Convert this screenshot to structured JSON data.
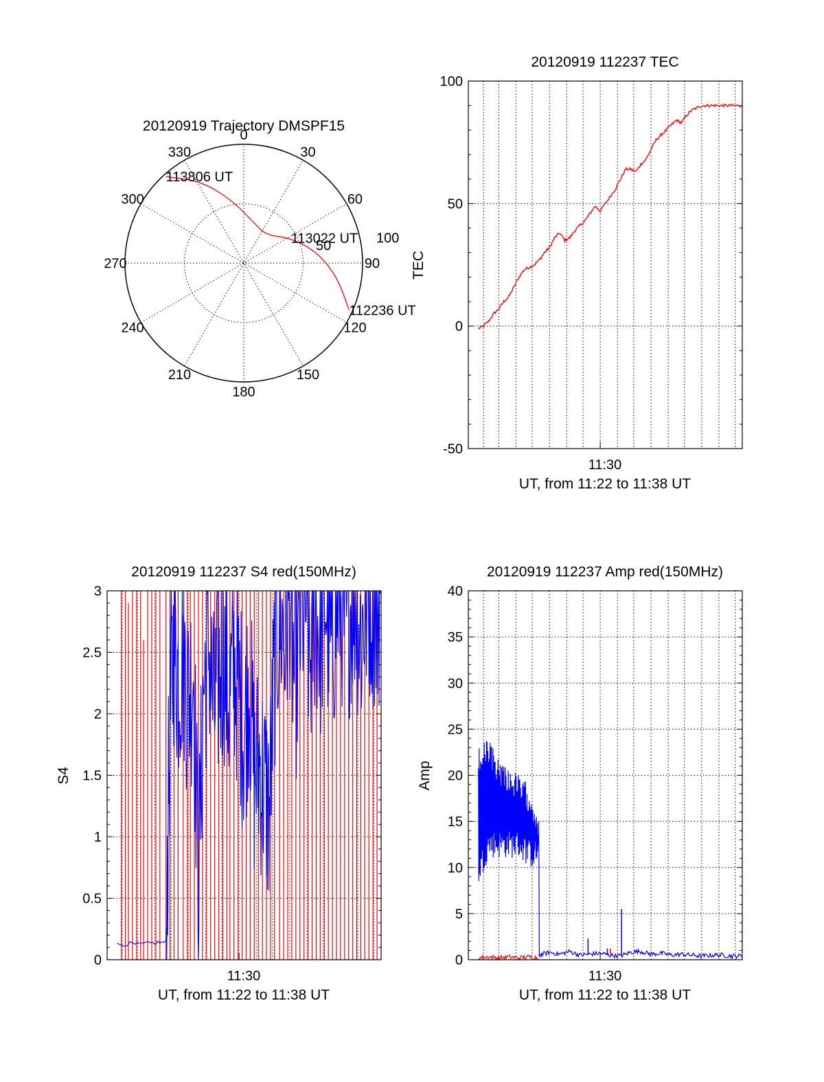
{
  "colors": {
    "red": "#ff0000",
    "blue": "#0000ff",
    "black": "#000000"
  },
  "chart_data": [
    {
      "id": "trajectory",
      "type": "polar",
      "title": "20120919 Trajectory DMSPF15",
      "azimuth_labels": [
        "0",
        "30",
        "60",
        "90",
        "120",
        "150",
        "180",
        "210",
        "240",
        "270",
        "300",
        "330"
      ],
      "radial_tick_labels": [
        "50",
        "100"
      ],
      "r_max": 100,
      "track": {
        "color": "red",
        "points": [
          {
            "az": 318,
            "r": 98
          },
          {
            "az": 333,
            "r": 77
          },
          {
            "az": 350,
            "r": 53
          },
          {
            "az": 12,
            "r": 36
          },
          {
            "az": 38,
            "r": 30
          },
          {
            "az": 62,
            "r": 45
          },
          {
            "az": 82,
            "r": 63
          },
          {
            "az": 99,
            "r": 80
          },
          {
            "az": 114,
            "r": 97
          }
        ]
      },
      "annotations": [
        {
          "text": "113806 UT",
          "az": 318,
          "r": 98
        },
        {
          "text": "113022 UT",
          "az": 62,
          "r": 45
        },
        {
          "text": "112236 UT",
          "az": 114,
          "r": 97
        }
      ]
    },
    {
      "id": "tec",
      "type": "line",
      "title": "20120919 112237 TEC",
      "xlabel": "UT, from 11:22 to 11:38 UT",
      "ylabel": "TEC",
      "x_tick_labels": [
        {
          "x": 11.5,
          "label": "11:30"
        }
      ],
      "xlim": [
        11.37,
        11.64
      ],
      "ylim": [
        -50,
        100
      ],
      "y_ticks": [
        -50,
        0,
        50,
        100
      ],
      "x_grid": [
        11.385,
        11.4,
        11.417,
        11.433,
        11.45,
        11.467,
        11.483,
        11.5,
        11.517,
        11.533,
        11.55,
        11.567,
        11.583,
        11.6,
        11.617,
        11.633
      ],
      "series": [
        {
          "color": "red",
          "x": [
            11.38,
            11.385,
            11.39,
            11.395,
            11.4,
            11.405,
            11.41,
            11.415,
            11.42,
            11.425,
            11.43,
            11.435,
            11.44,
            11.445,
            11.45,
            11.455,
            11.46,
            11.465,
            11.47,
            11.475,
            11.48,
            11.485,
            11.49,
            11.495,
            11.5,
            11.505,
            11.51,
            11.515,
            11.52,
            11.525,
            11.53,
            11.535,
            11.54,
            11.545,
            11.55,
            11.555,
            11.56,
            11.565,
            11.57,
            11.575,
            11.58,
            11.585,
            11.59,
            11.595,
            11.6,
            11.605,
            11.61,
            11.615,
            11.62,
            11.625,
            11.63,
            11.635,
            11.64
          ],
          "y": [
            -1,
            0,
            2,
            5,
            7,
            10,
            12,
            16,
            20,
            23,
            24,
            25,
            27,
            30,
            32,
            36,
            38,
            35,
            36,
            39,
            41,
            43,
            46,
            49,
            47,
            50,
            53,
            56,
            60,
            64,
            64,
            63,
            66,
            68,
            72,
            76,
            78,
            80,
            82,
            84,
            83,
            86,
            88,
            89,
            90,
            90,
            90,
            90,
            90,
            90,
            90,
            90,
            90
          ]
        }
      ]
    },
    {
      "id": "s4",
      "type": "line",
      "title": "20120919 112237 S4 red(150MHz)",
      "xlabel": "UT, from 11:22 to 11:38 UT",
      "ylabel": "S4",
      "x_tick_labels": [
        {
          "x": 11.5,
          "label": "11:30"
        }
      ],
      "xlim": [
        11.37,
        11.64
      ],
      "ylim": [
        0,
        3
      ],
      "y_ticks": [
        0,
        0.5,
        1,
        1.5,
        2,
        2.5,
        3
      ],
      "y_tick_labels": [
        "0",
        "0.5",
        "1",
        "1.5",
        "2",
        "2.5",
        "3"
      ],
      "x_grid": [
        11.385,
        11.4,
        11.417,
        11.433,
        11.45,
        11.467,
        11.483,
        11.5,
        11.517,
        11.533,
        11.55,
        11.567,
        11.583,
        11.6,
        11.617,
        11.633
      ],
      "series": [
        {
          "color": "red",
          "style": "spikes",
          "x": [
            11.384,
            11.388,
            11.391,
            11.395,
            11.399,
            11.403,
            11.406,
            11.41,
            11.414,
            11.418,
            11.422,
            11.428,
            11.432,
            11.436,
            11.44,
            11.445,
            11.449,
            11.452,
            11.456,
            11.46,
            11.464,
            11.468,
            11.472,
            11.476,
            11.48,
            11.484,
            11.488,
            11.491,
            11.495,
            11.499,
            11.503,
            11.507,
            11.511,
            11.515,
            11.519,
            11.523,
            11.527,
            11.531,
            11.535,
            11.54,
            11.544,
            11.548,
            11.552,
            11.556,
            11.56,
            11.564,
            11.568,
            11.572,
            11.576,
            11.58,
            11.584,
            11.588,
            11.592,
            11.596,
            11.6,
            11.604,
            11.608,
            11.612,
            11.616,
            11.62,
            11.624,
            11.628,
            11.632,
            11.636
          ],
          "y": [
            3,
            3,
            2.9,
            3,
            3,
            3,
            2.6,
            3,
            3,
            3,
            3,
            3,
            3,
            3,
            3,
            2.8,
            3,
            3,
            3,
            3,
            3,
            3,
            3,
            3,
            3,
            3,
            3,
            3,
            3,
            3,
            3,
            3,
            3,
            3,
            3,
            3,
            3,
            3,
            3,
            3,
            3,
            3,
            3,
            3,
            3,
            3,
            3,
            3,
            3,
            3,
            3,
            3,
            3,
            3,
            3,
            3,
            3,
            3,
            3,
            3,
            3,
            3,
            3,
            3
          ]
        },
        {
          "color": "blue",
          "style": "noisy",
          "x": [
            11.38,
            11.39,
            11.4,
            11.41,
            11.42,
            11.428,
            11.432,
            11.436,
            11.44,
            11.445,
            11.45,
            11.455,
            11.46,
            11.465,
            11.47,
            11.475,
            11.48,
            11.485,
            11.49,
            11.495,
            11.5,
            11.505,
            11.51,
            11.515,
            11.52,
            11.525,
            11.53,
            11.535,
            11.54,
            11.545,
            11.55,
            11.555,
            11.56,
            11.565,
            11.57,
            11.575,
            11.58,
            11.585,
            11.59,
            11.595,
            11.6,
            11.605,
            11.61,
            11.615,
            11.62,
            11.625,
            11.63,
            11.635,
            11.64
          ],
          "y": [
            0.12,
            0.13,
            0.12,
            0.13,
            0.14,
            0.14,
            2.0,
            2.6,
            2.3,
            2.5,
            2.1,
            2.4,
            0.6,
            2.2,
            2.6,
            2.0,
            2.3,
            2.5,
            2.1,
            2.4,
            2.2,
            1.8,
            2.3,
            1.5,
            1.6,
            1.4,
            1.2,
            2.4,
            2.8,
            2.6,
            3.0,
            2.2,
            2.7,
            3.0,
            2.4,
            2.9,
            2.6,
            3.0,
            2.5,
            2.8,
            3.0,
            2.7,
            2.9,
            3.0,
            2.6,
            2.9,
            3.0,
            2.8,
            3.0
          ]
        }
      ]
    },
    {
      "id": "amp",
      "type": "line",
      "title": "20120919 112237 Amp red(150MHz)",
      "xlabel": "UT, from 11:22 to 11:38 UT",
      "ylabel": "Amp",
      "x_tick_labels": [
        {
          "x": 11.5,
          "label": "11:30"
        }
      ],
      "xlim": [
        11.37,
        11.64
      ],
      "ylim": [
        0,
        40
      ],
      "y_ticks": [
        0,
        5,
        10,
        15,
        20,
        25,
        30,
        35,
        40
      ],
      "x_grid": [
        11.385,
        11.4,
        11.417,
        11.433,
        11.45,
        11.467,
        11.483,
        11.5,
        11.517,
        11.533,
        11.55,
        11.567,
        11.583,
        11.6,
        11.617,
        11.633
      ],
      "series": [
        {
          "color": "blue",
          "style": "band",
          "x": [
            11.38,
            11.39,
            11.4,
            11.41,
            11.42,
            11.43,
            11.44
          ],
          "low": [
            8,
            11,
            11,
            11,
            11,
            10,
            10
          ],
          "high": [
            23,
            24,
            22,
            21,
            20,
            19,
            16
          ]
        },
        {
          "color": "blue",
          "style": "noisy",
          "x": [
            11.44,
            11.45,
            11.46,
            11.47,
            11.48,
            11.49,
            11.5,
            11.51,
            11.52,
            11.53,
            11.54,
            11.55,
            11.56,
            11.57,
            11.58,
            11.59,
            11.6,
            11.61,
            11.62,
            11.63,
            11.64
          ],
          "y": [
            0.5,
            0.8,
            0.6,
            0.9,
            0.5,
            0.6,
            0.7,
            0.5,
            0.4,
            0.8,
            0.9,
            0.6,
            0.7,
            0.5,
            0.6,
            0.5,
            0.4,
            0.5,
            0.5,
            0.4,
            0.4
          ],
          "spikes": [
            {
              "x": 11.488,
              "y": 2.3
            },
            {
              "x": 11.507,
              "y": 1.2
            },
            {
              "x": 11.521,
              "y": 5.5
            }
          ]
        },
        {
          "color": "red",
          "style": "noisy",
          "x": [
            11.38,
            11.39,
            11.4,
            11.41,
            11.42,
            11.43,
            11.44
          ],
          "y": [
            0.2,
            0.3,
            0.2,
            0.3,
            0.2,
            0.3,
            0.2
          ],
          "spikes": [
            {
              "x": 11.51,
              "y": 1.2
            }
          ]
        }
      ]
    }
  ]
}
